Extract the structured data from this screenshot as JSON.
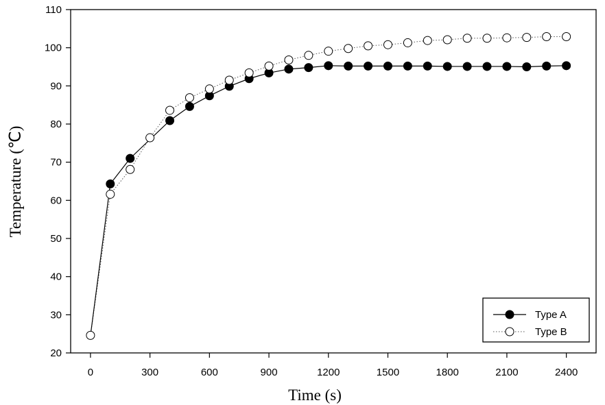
{
  "chart_data": {
    "type": "line",
    "xlabel": "Time (s)",
    "ylabel": "Temperature (℃)",
    "xlim": [
      -100,
      2550
    ],
    "ylim": [
      20,
      110
    ],
    "xticks": [
      "0",
      "300",
      "600",
      "900",
      "1200",
      "1500",
      "1800",
      "2100",
      "2400"
    ],
    "yticks": [
      "20",
      "30",
      "40",
      "50",
      "60",
      "70",
      "80",
      "90",
      "100",
      "110"
    ],
    "grid": false,
    "legend_position": "bottom-right",
    "series": [
      {
        "name": "Type A",
        "marker": "filled-circle",
        "line": "solid",
        "x": [
          100,
          200,
          400,
          500,
          600,
          700,
          800,
          900,
          1000,
          1100,
          1200,
          1300,
          1400,
          1500,
          1600,
          1700,
          1800,
          1900,
          2000,
          2100,
          2200,
          2300,
          2400
        ],
        "y": [
          64.3,
          71.0,
          80.9,
          84.6,
          87.4,
          89.9,
          91.9,
          93.4,
          94.4,
          94.8,
          95.3,
          95.2,
          95.2,
          95.2,
          95.2,
          95.2,
          95.1,
          95.1,
          95.1,
          95.1,
          95.0,
          95.2,
          95.3
        ]
      },
      {
        "name": "Type B",
        "marker": "open-circle",
        "line": "dotted",
        "x": [
          0,
          100,
          200,
          300,
          400,
          500,
          600,
          700,
          800,
          900,
          1000,
          1100,
          1200,
          1300,
          1400,
          1500,
          1600,
          1700,
          1800,
          1900,
          2000,
          2100,
          2200,
          2300,
          2400
        ],
        "y": [
          24.6,
          61.6,
          68.1,
          76.4,
          83.6,
          86.9,
          89.2,
          91.5,
          93.4,
          95.2,
          96.8,
          98.0,
          99.1,
          99.8,
          100.5,
          100.8,
          101.3,
          101.9,
          102.1,
          102.5,
          102.5,
          102.6,
          102.7,
          102.9,
          102.9
        ]
      }
    ],
    "type_a_start": {
      "x": 0,
      "y": 24.6
    }
  }
}
